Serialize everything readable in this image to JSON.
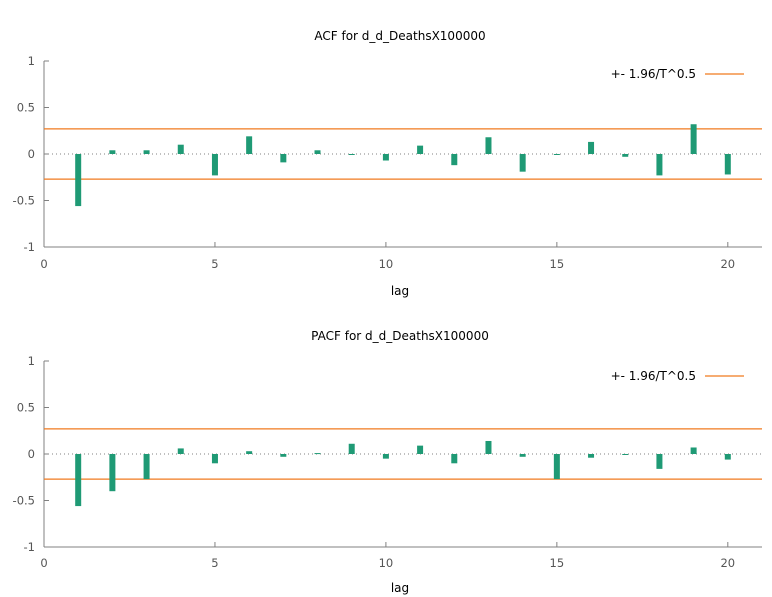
{
  "colors": {
    "bar": "#1f9a75",
    "band": "#f07a1f",
    "axis": "#808080",
    "zero": "#808080"
  },
  "chart_data": [
    {
      "type": "bar",
      "title": "ACF for d_d_DeathsX100000",
      "xlabel": "lag",
      "ylabel": "",
      "xlim": [
        0,
        21
      ],
      "ylim": [
        -1,
        1
      ],
      "xticks": [
        "0",
        "5",
        "10",
        "15",
        "20"
      ],
      "yticks": [
        "1",
        "0.5",
        "0",
        "-0.5",
        "-1"
      ],
      "legend": {
        "label": "+- 1.96/T^0.5",
        "position": "top-right"
      },
      "band": 0.27,
      "x": [
        1,
        2,
        3,
        4,
        5,
        6,
        7,
        8,
        9,
        10,
        11,
        12,
        13,
        14,
        15,
        16,
        17,
        18,
        19,
        20
      ],
      "values": [
        -0.56,
        0.04,
        0.04,
        0.1,
        -0.23,
        0.19,
        -0.09,
        0.04,
        -0.01,
        -0.07,
        0.09,
        -0.12,
        0.18,
        -0.19,
        -0.01,
        0.13,
        -0.03,
        -0.23,
        0.32,
        -0.22
      ]
    },
    {
      "type": "bar",
      "title": "PACF for d_d_DeathsX100000",
      "xlabel": "lag",
      "ylabel": "",
      "xlim": [
        0,
        21
      ],
      "ylim": [
        -1,
        1
      ],
      "xticks": [
        "0",
        "5",
        "10",
        "15",
        "20"
      ],
      "yticks": [
        "1",
        "0.5",
        "0",
        "-0.5",
        "-1"
      ],
      "legend": {
        "label": "+- 1.96/T^0.5",
        "position": "top-right"
      },
      "band": 0.27,
      "x": [
        1,
        2,
        3,
        4,
        5,
        6,
        7,
        8,
        9,
        10,
        11,
        12,
        13,
        14,
        15,
        16,
        17,
        18,
        19,
        20
      ],
      "values": [
        -0.56,
        -0.4,
        -0.27,
        0.06,
        -0.1,
        0.03,
        -0.03,
        0.01,
        0.11,
        -0.05,
        0.09,
        -0.1,
        0.14,
        -0.03,
        -0.27,
        -0.04,
        -0.01,
        -0.16,
        0.07,
        -0.06
      ]
    }
  ]
}
